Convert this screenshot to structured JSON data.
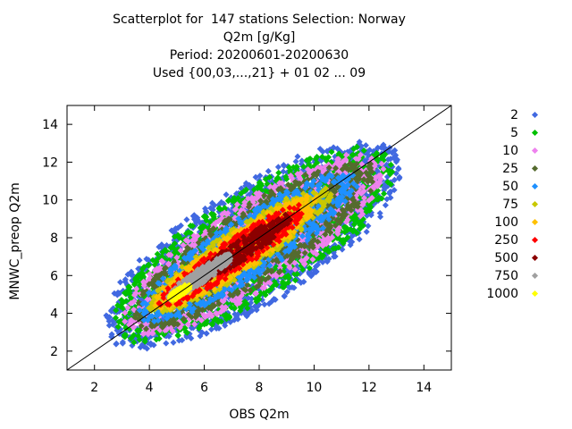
{
  "chart_data": {
    "type": "scatter",
    "title_lines": [
      "Scatterplot for  147 stations Selection: Norway",
      "Q2m [g/Kg]",
      "Period: 20200601-20200630",
      "Used {00,03,...,21} + 01 02 ... 09"
    ],
    "xlabel": "OBS Q2m",
    "ylabel": "MNWC_preop Q2m",
    "xlim": [
      1,
      15
    ],
    "ylim": [
      1,
      15
    ],
    "x_ticks": [
      2,
      4,
      6,
      8,
      10,
      12,
      14
    ],
    "y_ticks": [
      2,
      4,
      6,
      8,
      10,
      12,
      14
    ],
    "diagonal_line": true,
    "legend_position": "right",
    "density_levels": [
      {
        "label": "2",
        "color": "#4169e1",
        "core": [
          7.8,
          7.6
        ],
        "half_along": 7.2,
        "half_across": 2.7
      },
      {
        "label": "5",
        "color": "#00c000",
        "core": [
          7.8,
          7.6
        ],
        "half_along": 6.8,
        "half_across": 2.4
      },
      {
        "label": "10",
        "color": "#ee82ee",
        "core": [
          7.8,
          7.6
        ],
        "half_along": 6.4,
        "half_across": 2.0
      },
      {
        "label": "25",
        "color": "#556b2f",
        "core": [
          7.8,
          7.6
        ],
        "half_along": 6.0,
        "half_across": 1.7
      },
      {
        "label": "50",
        "color": "#1e90ff",
        "core": [
          7.6,
          7.5
        ],
        "half_along": 5.5,
        "half_across": 1.35
      },
      {
        "label": "75",
        "color": "#c8c800",
        "core": [
          7.3,
          7.3
        ],
        "half_along": 4.6,
        "half_across": 1.0
      },
      {
        "label": "100",
        "color": "#ffc000",
        "core": [
          7.2,
          7.2
        ],
        "half_along": 4.2,
        "half_across": 0.85
      },
      {
        "label": "250",
        "color": "#ff0000",
        "core": [
          7.0,
          7.0
        ],
        "half_along": 3.7,
        "half_across": 0.7
      },
      {
        "label": "500",
        "color": "#8b0000",
        "core": [
          7.3,
          7.3
        ],
        "half_along": 2.6,
        "half_across": 0.45
      },
      {
        "label": "750",
        "color": "#a0a0a0",
        "core": [
          5.9,
          6.0
        ],
        "half_along": 1.7,
        "half_across": 0.3
      },
      {
        "label": "1000",
        "color": "#ffff00",
        "core": [
          5.1,
          5.1
        ],
        "half_along": 0.5,
        "half_across": 0.15
      }
    ]
  }
}
